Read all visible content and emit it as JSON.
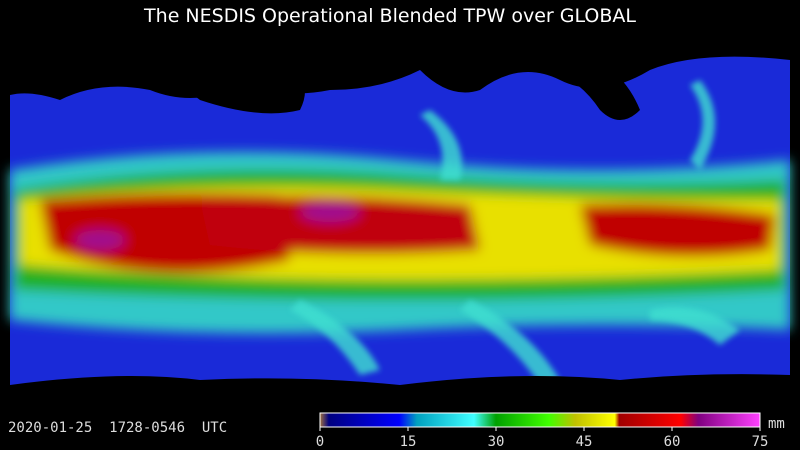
{
  "title": "The NESDIS Operational Blended TPW over GLOBAL",
  "timestamp": "2020-01-25  1728-0546  UTC",
  "colorbar": {
    "unit": "mm",
    "range": [
      0,
      75
    ],
    "ticks": [
      0,
      15,
      30,
      45,
      60,
      75
    ]
  }
}
